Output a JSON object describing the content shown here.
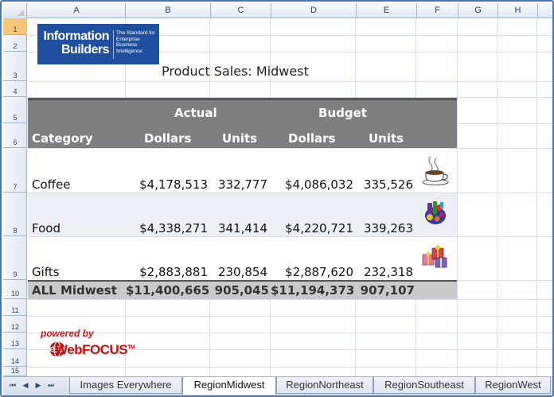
{
  "columns": [
    "A",
    "B",
    "C",
    "D",
    "E",
    "F",
    "G",
    "H"
  ],
  "rows": [
    "1",
    "2",
    "3",
    "4",
    "5",
    "6",
    "7",
    "8",
    "9",
    "10",
    "11",
    "12",
    "13",
    "14",
    "15"
  ],
  "logo": {
    "line1": "Information",
    "line2": "Builders",
    "tagline": "The Standard for Enterprise Business Intelligence"
  },
  "report": {
    "title": "Product Sales:  Midwest",
    "header_group": {
      "actual": "Actual",
      "budget": "Budget"
    },
    "header_cols": {
      "category": "Category",
      "dollars": "Dollars",
      "units": "Units",
      "budget_dollars": "Dollars",
      "budget_units": "Units"
    },
    "data_rows": [
      {
        "category": "Coffee",
        "actual_dollars": "$4,178,513",
        "actual_units": "332,777",
        "budget_dollars": "$4,086,032",
        "budget_units": "335,526",
        "icon": "coffee-cup-icon"
      },
      {
        "category": "Food",
        "actual_dollars": "$4,338,271",
        "actual_units": "341,414",
        "budget_dollars": "$4,220,721",
        "budget_units": "339,263",
        "icon": "food-icon"
      },
      {
        "category": "Gifts",
        "actual_dollars": "$2,883,881",
        "actual_units": "230,854",
        "budget_dollars": "$2,887,620",
        "budget_units": "232,318",
        "icon": "gift-icon"
      }
    ],
    "total": {
      "label": "ALL  Midwest",
      "actual_dollars": "$11,400,665",
      "actual_units": "905,045",
      "budget_dollars": "$11,194,373",
      "budget_units": "907,107"
    }
  },
  "branding": {
    "powered": "powered by",
    "webfocus": "WebFOCUS",
    "tm": "TM"
  },
  "tabs": [
    "Images Everywhere",
    "RegionMidwest",
    "RegionNortheast",
    "RegionSoutheast",
    "RegionWest"
  ],
  "active_tab": "RegionMidwest",
  "colors": {
    "header_band": "#7f7f7f",
    "total_band": "#c9c9c9",
    "alt_row": "#eeeef5",
    "brand_red": "#c01010",
    "logo_blue": "#1f4f9f"
  }
}
